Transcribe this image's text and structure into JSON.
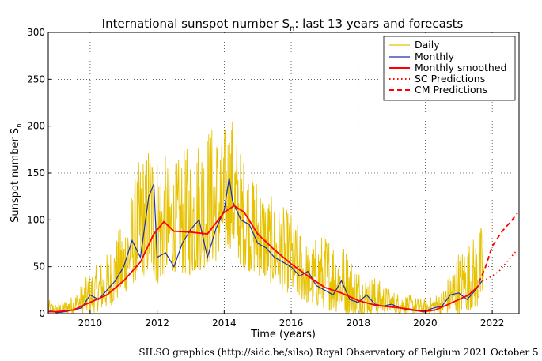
{
  "chart_data": {
    "type": "line",
    "title_main": "International sunspot number S",
    "title_sub": "n",
    "title_rest": ": last 13 years and forecasts",
    "xlabel": "Time (years)",
    "ylabel_main": "Sunspot number S",
    "ylabel_sub": "n",
    "xlim": [
      2008.75,
      2022.8
    ],
    "ylim": [
      0,
      300
    ],
    "x_ticks": [
      2010,
      2012,
      2014,
      2016,
      2018,
      2020,
      2022
    ],
    "x_tick_labels": [
      "2010",
      "2012",
      "2014",
      "2016",
      "2018",
      "2020",
      "2022"
    ],
    "y_ticks": [
      0,
      50,
      100,
      150,
      200,
      250,
      300
    ],
    "y_tick_labels": [
      "0",
      "50",
      "100",
      "150",
      "200",
      "250",
      "300"
    ],
    "grid": true,
    "legend_position": "top-right",
    "series": [
      {
        "name": "Daily",
        "color": "#e6c200",
        "style": "solid-thin"
      },
      {
        "name": "Monthly",
        "color": "#1f2fa8",
        "style": "solid"
      },
      {
        "name": "Monthly smoothed",
        "color": "#ff0000",
        "style": "solid-thick"
      },
      {
        "name": "SC Predictions",
        "color": "#ff0000",
        "style": "dotted"
      },
      {
        "name": "CM Predictions",
        "color": "#ff0000",
        "style": "dashed"
      }
    ],
    "daily_envelope": {
      "x": [
        2008.75,
        2009.0,
        2009.5,
        2010.0,
        2010.5,
        2011.0,
        2011.5,
        2011.8,
        2012.0,
        2012.5,
        2013.0,
        2013.5,
        2014.0,
        2014.2,
        2014.5,
        2015.0,
        2015.5,
        2016.0,
        2016.5,
        2017.0,
        2017.5,
        2018.0,
        2018.5,
        2019.0,
        2019.5,
        2020.0,
        2020.5,
        2021.0,
        2021.5,
        2021.75
      ],
      "high": [
        15,
        10,
        20,
        45,
        65,
        100,
        170,
        195,
        180,
        160,
        185,
        205,
        200,
        220,
        175,
        150,
        120,
        110,
        75,
        90,
        80,
        50,
        40,
        25,
        20,
        15,
        25,
        70,
        85,
        100
      ],
      "low": [
        0,
        0,
        0,
        0,
        5,
        20,
        40,
        40,
        30,
        45,
        40,
        50,
        60,
        70,
        50,
        40,
        30,
        20,
        10,
        5,
        0,
        0,
        0,
        0,
        0,
        0,
        0,
        0,
        5,
        10
      ]
    },
    "monthly": {
      "x": [
        2008.75,
        2009.0,
        2009.25,
        2009.5,
        2009.75,
        2010.0,
        2010.25,
        2010.5,
        2010.75,
        2011.0,
        2011.25,
        2011.5,
        2011.75,
        2011.9,
        2012.0,
        2012.25,
        2012.5,
        2012.75,
        2013.0,
        2013.25,
        2013.5,
        2013.75,
        2014.0,
        2014.15,
        2014.25,
        2014.5,
        2014.75,
        2015.0,
        2015.25,
        2015.5,
        2015.75,
        2016.0,
        2016.25,
        2016.5,
        2016.75,
        2017.0,
        2017.25,
        2017.5,
        2017.75,
        2018.0,
        2018.25,
        2018.5,
        2018.75,
        2019.0,
        2019.25,
        2019.5,
        2019.75,
        2020.0,
        2020.25,
        2020.5,
        2020.75,
        2021.0,
        2021.25,
        2021.5,
        2021.7
      ],
      "y": [
        4,
        1,
        2,
        4,
        6,
        20,
        15,
        25,
        35,
        50,
        78,
        60,
        125,
        138,
        60,
        65,
        50,
        75,
        90,
        100,
        60,
        90,
        110,
        145,
        120,
        100,
        95,
        75,
        70,
        60,
        55,
        50,
        40,
        45,
        30,
        25,
        20,
        35,
        15,
        12,
        20,
        10,
        8,
        10,
        6,
        4,
        3,
        3,
        6,
        8,
        20,
        22,
        15,
        25,
        35
      ]
    },
    "monthly_smoothed": {
      "x": [
        2008.75,
        2009.0,
        2009.5,
        2010.0,
        2010.5,
        2011.0,
        2011.5,
        2011.9,
        2012.2,
        2012.5,
        2013.0,
        2013.5,
        2014.0,
        2014.3,
        2014.6,
        2015.0,
        2015.5,
        2016.0,
        2016.5,
        2017.0,
        2017.5,
        2018.0,
        2018.5,
        2019.0,
        2019.5,
        2019.95,
        2020.3,
        2020.7,
        2021.0,
        2021.3,
        2021.6
      ],
      "y": [
        2,
        2,
        4,
        12,
        20,
        35,
        55,
        85,
        98,
        88,
        87,
        85,
        108,
        115,
        108,
        85,
        68,
        53,
        40,
        28,
        22,
        14,
        9,
        7,
        5,
        2,
        4,
        10,
        15,
        20,
        30
      ]
    },
    "sc_predictions": {
      "x": [
        2021.6,
        2021.9,
        2022.2,
        2022.5,
        2022.75
      ],
      "y": [
        33,
        38,
        45,
        58,
        68
      ]
    },
    "cm_predictions": {
      "x": [
        2021.6,
        2021.8,
        2022.0,
        2022.3,
        2022.55,
        2022.75
      ],
      "y": [
        33,
        50,
        72,
        88,
        98,
        107
      ]
    },
    "credit": "SILSO graphics (http://sidc.be/silso)  Royal Observatory of Belgium  2021 October 5"
  }
}
